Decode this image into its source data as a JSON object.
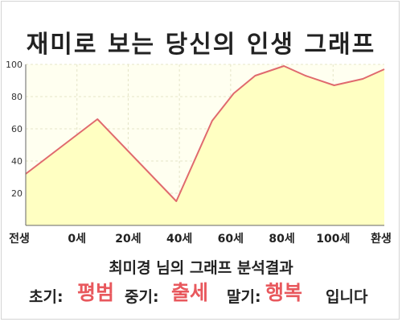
{
  "title": "재미로 보는 당신의 인생 그래프",
  "chart_data": {
    "type": "area",
    "categories": [
      "전생",
      "0세",
      "20세",
      "40세",
      "60세",
      "80세",
      "100세",
      "환생"
    ],
    "x": [
      -10,
      0,
      11,
      16,
      19,
      22,
      24,
      26,
      29,
      33,
      37,
      40
    ],
    "values": [
      32,
      66,
      15,
      65,
      82,
      93,
      96,
      99,
      93,
      87,
      91,
      97
    ],
    "yticks": [
      20,
      40,
      60,
      80,
      100
    ],
    "ylim": [
      0,
      100
    ],
    "xlabel": "",
    "ylabel": "",
    "grid": true,
    "colors": {
      "line": "#e06a6e",
      "fill": "#ffffc2",
      "plot_bg": "#fffff0",
      "grid": "#e4e4c8"
    }
  },
  "summary": {
    "headline": "최미경 님의 그래프 분석결과",
    "early_label": "초기:",
    "early_value": "평범",
    "mid_label": "중기:",
    "mid_value": "출세",
    "late_label": "말기:",
    "late_value": "행복",
    "ending": "입니다"
  }
}
